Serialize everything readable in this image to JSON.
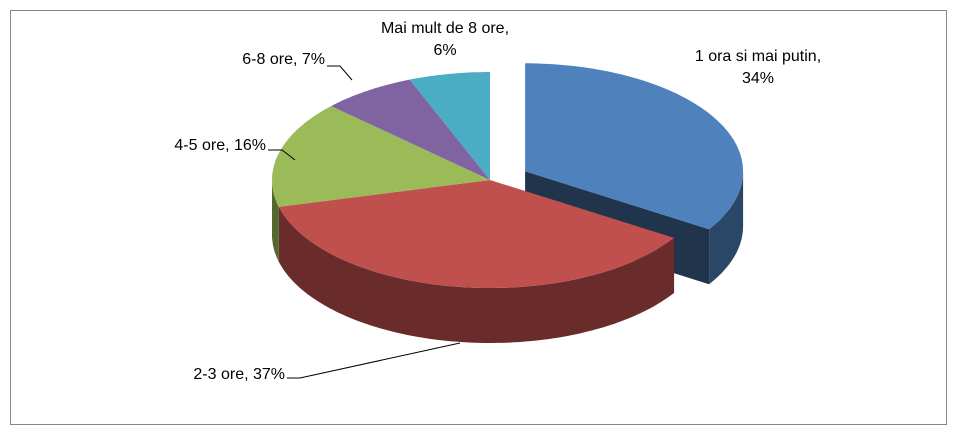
{
  "chart_data": {
    "type": "pie3d",
    "values": [
      34,
      37,
      16,
      7,
      6
    ],
    "value_labels": [
      "1 ora si mai putin, 34%",
      "2-3 ore, 37%",
      "4-5 ore, 16%",
      "6-8 ore, 7%",
      "Mai mult de 8 ore, 6%"
    ],
    "colors": [
      "#4f81bd",
      "#c0504d",
      "#9bbb59",
      "#8064a2",
      "#4bacc6"
    ]
  }
}
